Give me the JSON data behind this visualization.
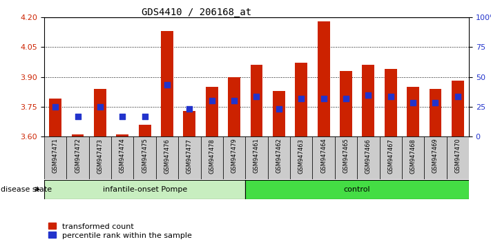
{
  "title": "GDS4410 / 206168_at",
  "samples": [
    "GSM947471",
    "GSM947472",
    "GSM947473",
    "GSM947474",
    "GSM947475",
    "GSM947476",
    "GSM947477",
    "GSM947478",
    "GSM947479",
    "GSM947461",
    "GSM947462",
    "GSM947463",
    "GSM947464",
    "GSM947465",
    "GSM947466",
    "GSM947467",
    "GSM947468",
    "GSM947469",
    "GSM947470"
  ],
  "bar_tops": [
    3.79,
    3.61,
    3.84,
    3.61,
    3.66,
    4.13,
    3.73,
    3.85,
    3.9,
    3.96,
    3.83,
    3.97,
    4.18,
    3.93,
    3.96,
    3.94,
    3.85,
    3.84,
    3.88
  ],
  "blue_y": [
    3.75,
    3.7,
    3.75,
    3.7,
    3.7,
    3.86,
    3.74,
    3.78,
    3.78,
    3.8,
    3.74,
    3.79,
    3.79,
    3.79,
    3.81,
    3.8,
    3.77,
    3.77,
    3.8
  ],
  "bar_base": 3.6,
  "ylim": [
    3.6,
    4.2
  ],
  "yticks_left": [
    3.6,
    3.75,
    3.9,
    4.05,
    4.2
  ],
  "yticks_right": [
    0,
    25,
    50,
    75,
    100
  ],
  "group1_n": 9,
  "group2_n": 10,
  "group1_label": "infantile-onset Pompe",
  "group2_label": "control",
  "group1_color": "#c8eec0",
  "group2_color": "#44dd44",
  "bar_color": "#cc2200",
  "blue_color": "#2233cc",
  "header_bg": "#cccccc",
  "bar_width": 0.55,
  "left_tick_color": "#cc2200",
  "right_tick_color": "#2233cc",
  "legend_labels": [
    "transformed count",
    "percentile rank within the sample"
  ],
  "disease_state_label": "disease state"
}
